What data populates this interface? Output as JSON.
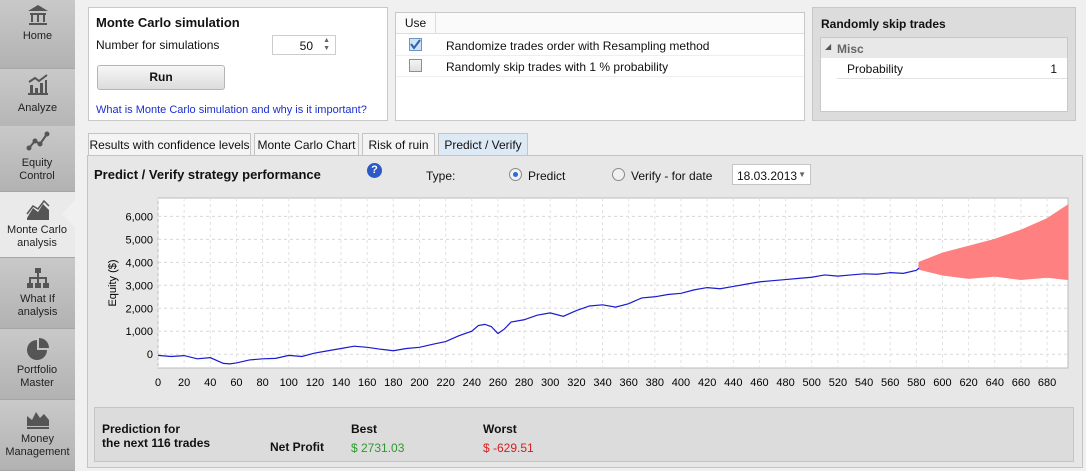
{
  "sidebar": {
    "items": [
      {
        "label": "Home",
        "icon": "bank-icon"
      },
      {
        "label": "Analyze",
        "icon": "analyze-chart-icon"
      },
      {
        "label": "Equity Control",
        "icon": "equity-control-icon"
      },
      {
        "label": "Monte Carlo analysis",
        "icon": "monte-carlo-icon",
        "active": true
      },
      {
        "label": "What If analysis",
        "icon": "hierarchy-icon"
      },
      {
        "label": "Portfolio Master",
        "icon": "pie-icon"
      },
      {
        "label": "Money Management",
        "icon": "money-chart-icon"
      }
    ]
  },
  "simulation": {
    "title": "Monte Carlo simulation",
    "count_label": "Number for simulations",
    "count_value": "50",
    "run_label": "Run",
    "help_link": "What is Monte Carlo simulation and why is it important?"
  },
  "options": {
    "use_header": "Use",
    "rows": [
      {
        "label": "Randomize trades order with Resampling method",
        "checked": true
      },
      {
        "label": "Randomly skip trades with 1 % probability",
        "checked": false
      }
    ]
  },
  "skip_panel": {
    "title": "Randomly skip trades",
    "group": "Misc",
    "property": "Probability",
    "value": "1"
  },
  "tabs": [
    "Results with confidence levels",
    "Monte Carlo Chart",
    "Risk of ruin",
    "Predict / Verify"
  ],
  "active_tab": 3,
  "predict": {
    "title": "Predict / Verify strategy performance",
    "help_symbol": "?",
    "type_label": "Type:",
    "predict_label": "Predict",
    "verify_label": "Verify - for date",
    "date_value": "18.03.2013"
  },
  "chart_data": {
    "type": "line",
    "ylabel": "Equity ($)",
    "xlim": [
      0,
      696
    ],
    "ylim": [
      -600,
      6800
    ],
    "yticks": [
      0,
      1000,
      2000,
      3000,
      4000,
      5000,
      6000
    ],
    "ytick_labels": [
      "0",
      "1,000",
      "2,000",
      "3,000",
      "4,000",
      "5,000",
      "6,000"
    ],
    "xticks": [
      0,
      20,
      40,
      60,
      80,
      100,
      120,
      140,
      160,
      180,
      200,
      220,
      240,
      260,
      280,
      300,
      320,
      340,
      360,
      380,
      400,
      420,
      440,
      460,
      480,
      500,
      520,
      540,
      560,
      580,
      600,
      620,
      640,
      660,
      680
    ],
    "grid": true,
    "series": [
      {
        "color": "#1a1ad0",
        "x": [
          0,
          10,
          20,
          30,
          40,
          50,
          55,
          60,
          70,
          80,
          90,
          100,
          110,
          120,
          130,
          140,
          150,
          160,
          170,
          180,
          190,
          200,
          210,
          220,
          230,
          240,
          245,
          250,
          255,
          260,
          265,
          270,
          280,
          290,
          300,
          310,
          320,
          330,
          340,
          350,
          360,
          370,
          380,
          390,
          400,
          410,
          420,
          430,
          440,
          450,
          460,
          470,
          480,
          490,
          500,
          510,
          520,
          530,
          540,
          550,
          560,
          570,
          580,
          582
        ],
        "y": [
          -50,
          -100,
          -60,
          -200,
          -150,
          -400,
          -420,
          -380,
          -250,
          -200,
          -180,
          -50,
          -100,
          50,
          150,
          250,
          350,
          300,
          220,
          150,
          250,
          300,
          430,
          550,
          800,
          1000,
          1250,
          1300,
          1200,
          900,
          1100,
          1400,
          1500,
          1700,
          1800,
          1650,
          1900,
          2100,
          2150,
          2050,
          2200,
          2450,
          2500,
          2600,
          2650,
          2800,
          2900,
          2850,
          2950,
          3050,
          3150,
          3200,
          3250,
          3300,
          3350,
          3450,
          3400,
          3450,
          3500,
          3480,
          3550,
          3520,
          3650,
          3750
        ]
      }
    ],
    "band": {
      "color": "#ff8080",
      "x": [
        582,
        600,
        620,
        640,
        660,
        680,
        696
      ],
      "upper": [
        4000,
        4400,
        4700,
        5000,
        5400,
        5900,
        6500
      ],
      "lower": [
        3700,
        3450,
        3300,
        3400,
        3250,
        3350,
        3250
      ]
    }
  },
  "prediction": {
    "caption_line1": "Prediction for",
    "caption_line2": "the next 116 trades",
    "best_header": "Best",
    "worst_header": "Worst",
    "row_label": "Net Profit",
    "best_value": "$ 2731.03",
    "worst_value": "$ -629.51",
    "best_color": "#2e9a2e",
    "worst_color": "#d42020"
  }
}
